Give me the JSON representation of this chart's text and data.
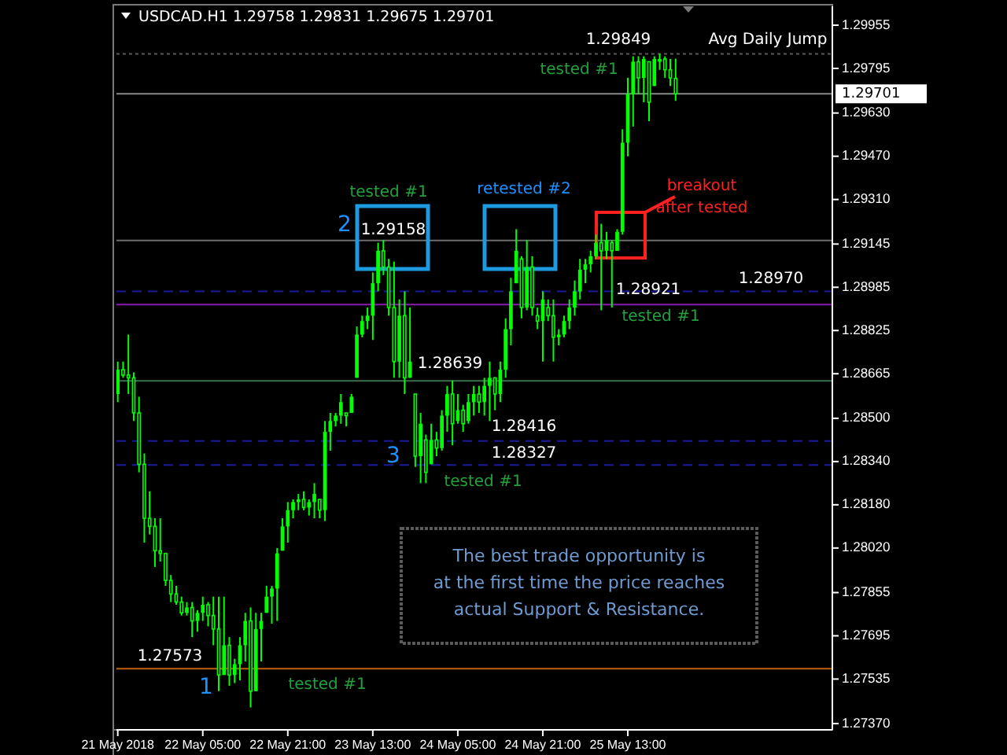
{
  "chart_data": {
    "type": "candlestick",
    "title": "USDCAD.H1  1.29758 1.29831 1.29675 1.29701",
    "color": "#00ff00",
    "x": [
      "2018-05-21T13:00",
      "2018-05-21T14:00",
      "2018-05-21T15:00",
      "2018-05-21T16:00",
      "2018-05-21T17:00",
      "2018-05-21T18:00",
      "2018-05-21T19:00",
      "2018-05-21T20:00",
      "2018-05-21T21:00",
      "2018-05-21T22:00",
      "2018-05-21T23:00",
      "2018-05-22T00:00",
      "2018-05-22T01:00",
      "2018-05-22T02:00",
      "2018-05-22T03:00",
      "2018-05-22T04:00",
      "2018-05-22T05:00",
      "2018-05-22T06:00",
      "2018-05-22T07:00",
      "2018-05-22T08:00",
      "2018-05-22T09:00",
      "2018-05-22T10:00",
      "2018-05-22T11:00",
      "2018-05-22T12:00",
      "2018-05-22T13:00",
      "2018-05-22T14:00",
      "2018-05-22T15:00",
      "2018-05-22T16:00",
      "2018-05-22T17:00",
      "2018-05-22T18:00",
      "2018-05-22T19:00",
      "2018-05-22T20:00",
      "2018-05-22T21:00",
      "2018-05-22T22:00",
      "2018-05-22T23:00",
      "2018-05-23T00:00",
      "2018-05-23T01:00",
      "2018-05-23T02:00",
      "2018-05-23T03:00",
      "2018-05-23T04:00",
      "2018-05-23T05:00",
      "2018-05-23T06:00",
      "2018-05-23T07:00",
      "2018-05-23T08:00",
      "2018-05-23T09:00",
      "2018-05-23T10:00",
      "2018-05-23T11:00",
      "2018-05-23T12:00",
      "2018-05-23T13:00",
      "2018-05-23T14:00",
      "2018-05-23T15:00",
      "2018-05-23T16:00",
      "2018-05-23T17:00",
      "2018-05-23T18:00",
      "2018-05-23T19:00",
      "2018-05-23T20:00",
      "2018-05-23T21:00",
      "2018-05-23T22:00",
      "2018-05-23T23:00",
      "2018-05-24T00:00",
      "2018-05-24T01:00",
      "2018-05-24T02:00",
      "2018-05-24T03:00",
      "2018-05-24T04:00",
      "2018-05-24T05:00",
      "2018-05-24T06:00",
      "2018-05-24T07:00",
      "2018-05-24T08:00",
      "2018-05-24T09:00",
      "2018-05-24T10:00",
      "2018-05-24T11:00",
      "2018-05-24T12:00",
      "2018-05-24T13:00",
      "2018-05-24T14:00",
      "2018-05-24T15:00",
      "2018-05-24T16:00",
      "2018-05-24T17:00",
      "2018-05-24T18:00",
      "2018-05-24T19:00",
      "2018-05-24T20:00",
      "2018-05-24T21:00",
      "2018-05-24T22:00",
      "2018-05-24T23:00",
      "2018-05-25T00:00",
      "2018-05-25T01:00",
      "2018-05-25T02:00",
      "2018-05-25T03:00",
      "2018-05-25T04:00",
      "2018-05-25T05:00",
      "2018-05-25T06:00",
      "2018-05-25T07:00",
      "2018-05-25T08:00",
      "2018-05-25T09:00",
      "2018-05-25T10:00",
      "2018-05-25T11:00",
      "2018-05-25T12:00",
      "2018-05-25T13:00",
      "2018-05-25T14:00",
      "2018-05-25T15:00",
      "2018-05-25T16:00",
      "2018-05-25T17:00",
      "2018-05-25T18:00",
      "2018-05-25T19:00",
      "2018-05-25T20:00",
      "2018-05-25T21:00",
      "2018-05-25T22:00"
    ],
    "ohlc": [
      [
        1.2859,
        1.2871,
        1.2856,
        1.2868
      ],
      [
        1.2868,
        1.2871,
        1.2865,
        1.2866
      ],
      [
        1.2866,
        1.2881,
        1.2859,
        1.2865
      ],
      [
        1.2865,
        1.2867,
        1.2849,
        1.2852
      ],
      [
        1.2852,
        1.2858,
        1.283,
        1.2833
      ],
      [
        1.2833,
        1.2837,
        1.2804,
        1.2813
      ],
      [
        1.2813,
        1.2823,
        1.2807,
        1.281
      ],
      [
        1.281,
        1.2813,
        1.2795,
        1.2801
      ],
      [
        1.2801,
        1.2813,
        1.2797,
        1.28
      ],
      [
        1.28,
        1.28,
        1.2788,
        1.279
      ],
      [
        1.279,
        1.2792,
        1.2782,
        1.2785
      ],
      [
        1.2785,
        1.2788,
        1.2781,
        1.2782
      ],
      [
        1.2782,
        1.2784,
        1.2777,
        1.2778
      ],
      [
        1.2778,
        1.2782,
        1.2777,
        1.278
      ],
      [
        1.278,
        1.2782,
        1.2769,
        1.2775
      ],
      [
        1.2775,
        1.2779,
        1.2771,
        1.2778
      ],
      [
        1.2778,
        1.2784,
        1.2775,
        1.2781
      ],
      [
        1.2781,
        1.2782,
        1.2773,
        1.2777
      ],
      [
        1.2777,
        1.2784,
        1.2766,
        1.2772
      ],
      [
        1.2772,
        1.2784,
        1.2749,
        1.2755
      ],
      [
        1.2755,
        1.2784,
        1.2755,
        1.2766
      ],
      [
        1.2766,
        1.2769,
        1.2751,
        1.2755
      ],
      [
        1.2755,
        1.2761,
        1.2752,
        1.2759
      ],
      [
        1.2759,
        1.2769,
        1.2753,
        1.2766
      ],
      [
        1.2766,
        1.2778,
        1.276,
        1.2775
      ],
      [
        1.2775,
        1.278,
        1.2743,
        1.2749
      ],
      [
        1.2749,
        1.2778,
        1.2749,
        1.2772
      ],
      [
        1.2772,
        1.2778,
        1.276,
        1.2775
      ],
      [
        1.2778,
        1.2788,
        1.2778,
        1.2784
      ],
      [
        1.2784,
        1.2788,
        1.2774,
        1.2787
      ],
      [
        1.2787,
        1.2802,
        1.2775,
        1.28
      ],
      [
        1.2801,
        1.2813,
        1.2801,
        1.281
      ],
      [
        1.281,
        1.2819,
        1.2804,
        1.2816
      ],
      [
        1.2816,
        1.282,
        1.2813,
        1.2819
      ],
      [
        1.2819,
        1.2822,
        1.2816,
        1.282
      ],
      [
        1.282,
        1.2823,
        1.2816,
        1.2817
      ],
      [
        1.2817,
        1.282,
        1.2814,
        1.2819
      ],
      [
        1.2819,
        1.2826,
        1.2813,
        1.2822
      ],
      [
        1.282,
        1.282,
        1.2813,
        1.2816
      ],
      [
        1.2816,
        1.2849,
        1.2812,
        1.2845
      ],
      [
        1.2845,
        1.2852,
        1.2838,
        1.2849
      ],
      [
        1.2849,
        1.2852,
        1.2847,
        1.2851
      ],
      [
        1.2851,
        1.2859,
        1.2848,
        1.2856
      ],
      [
        1.2852,
        1.2852,
        1.2847,
        1.2851
      ],
      [
        1.2852,
        1.2859,
        1.2852,
        1.2858
      ],
      [
        1.2865,
        1.2884,
        1.2865,
        1.2881
      ],
      [
        1.2881,
        1.2888,
        1.288,
        1.2886
      ],
      [
        1.2886,
        1.2891,
        1.2883,
        1.2888
      ],
      [
        1.2888,
        1.2904,
        1.2879,
        1.29
      ],
      [
        1.29,
        1.2915,
        1.2897,
        1.2912
      ],
      [
        1.2912,
        1.2916,
        1.2903,
        1.2906
      ],
      [
        1.2906,
        1.2909,
        1.2888,
        1.2891
      ],
      [
        1.2891,
        1.2908,
        1.2865,
        1.2871
      ],
      [
        1.2871,
        1.2894,
        1.2865,
        1.2888
      ],
      [
        1.2888,
        1.2897,
        1.2859,
        1.2865
      ],
      [
        1.2865,
        1.2891,
        1.2865,
        1.2871
      ],
      [
        1.2859,
        1.2859,
        1.2832,
        1.2836
      ],
      [
        1.2836,
        1.2852,
        1.2826,
        1.2848
      ],
      [
        1.2842,
        1.2844,
        1.2826,
        1.283
      ],
      [
        1.2833,
        1.2848,
        1.2833,
        1.2842
      ],
      [
        1.2842,
        1.2845,
        1.2836,
        1.2839
      ],
      [
        1.2839,
        1.2853,
        1.2838,
        1.2851
      ],
      [
        1.2851,
        1.2862,
        1.2845,
        1.2859
      ],
      [
        1.2859,
        1.2864,
        1.284,
        1.2848
      ],
      [
        1.2849,
        1.2859,
        1.2848,
        1.2853
      ],
      [
        1.2853,
        1.2855,
        1.2845,
        1.2848
      ],
      [
        1.2849,
        1.2859,
        1.2848,
        1.2856
      ],
      [
        1.2856,
        1.2862,
        1.2851,
        1.2859
      ],
      [
        1.2859,
        1.2862,
        1.2852,
        1.2856
      ],
      [
        1.2856,
        1.2865,
        1.2851,
        1.2862
      ],
      [
        1.2862,
        1.2871,
        1.2849,
        1.2865
      ],
      [
        1.2865,
        1.2865,
        1.2853,
        1.2859
      ],
      [
        1.2859,
        1.2871,
        1.2856,
        1.2868
      ],
      [
        1.2868,
        1.2887,
        1.2865,
        1.2883
      ],
      [
        1.2883,
        1.2902,
        1.2877,
        1.2897
      ],
      [
        1.29,
        1.292,
        1.29,
        1.2912
      ],
      [
        1.2909,
        1.291,
        1.2887,
        1.2891
      ],
      [
        1.2891,
        1.2916,
        1.289,
        1.2906
      ],
      [
        1.2906,
        1.291,
        1.2888,
        1.2891
      ],
      [
        1.2888,
        1.2891,
        1.2883,
        1.2886
      ],
      [
        1.2886,
        1.2897,
        1.2871,
        1.2894
      ],
      [
        1.2891,
        1.2894,
        1.2886,
        1.2888
      ],
      [
        1.2888,
        1.2894,
        1.2871,
        1.288
      ],
      [
        1.288,
        1.2883,
        1.2877,
        1.2881
      ],
      [
        1.2881,
        1.2888,
        1.288,
        1.2886
      ],
      [
        1.2886,
        1.2894,
        1.2883,
        1.2891
      ],
      [
        1.2891,
        1.2901,
        1.2888,
        1.2897
      ],
      [
        1.2897,
        1.2909,
        1.2894,
        1.2905
      ],
      [
        1.2905,
        1.2909,
        1.29,
        1.2907
      ],
      [
        1.2907,
        1.2912,
        1.2904,
        1.291
      ],
      [
        1.291,
        1.2918,
        1.2909,
        1.2915
      ],
      [
        1.2915,
        1.2922,
        1.289,
        1.2912
      ],
      [
        1.2912,
        1.2919,
        1.2909,
        1.2916
      ],
      [
        1.2915,
        1.2916,
        1.2891,
        1.2912
      ],
      [
        1.2912,
        1.292,
        1.2912,
        1.2919
      ],
      [
        1.2919,
        1.2957,
        1.2918,
        1.2952
      ],
      [
        1.2952,
        1.2976,
        1.2947,
        1.297
      ],
      [
        1.297,
        1.2984,
        1.2958,
        1.2982
      ],
      [
        1.2982,
        1.2984,
        1.297,
        1.2976
      ],
      [
        1.2976,
        1.2984,
        1.2967,
        1.2983
      ],
      [
        1.2982,
        1.2982,
        1.296,
        1.2967
      ],
      [
        1.2973,
        1.2984,
        1.2973,
        1.2983
      ],
      [
        1.2982,
        1.29849,
        1.2979,
        1.2983
      ],
      [
        1.2983,
        1.2984,
        1.2976,
        1.2979
      ],
      [
        1.2979,
        1.2983,
        1.2973,
        1.2976
      ],
      [
        1.29758,
        1.29831,
        1.29675,
        1.29701
      ]
    ],
    "xlim": [
      "2018-05-21T12:45",
      "2018-05-27T03:30"
    ],
    "xticks": [
      {
        "value": "2018-05-21T13:00",
        "label": "21 May 2018"
      },
      {
        "value": "2018-05-22T05:00",
        "label": "22 May 05:00"
      },
      {
        "value": "2018-05-22T21:00",
        "label": "22 May 21:00"
      },
      {
        "value": "2018-05-23T13:00",
        "label": "23 May 13:00"
      },
      {
        "value": "2018-05-24T05:00",
        "label": "24 May 05:00"
      },
      {
        "value": "2018-05-24T21:00",
        "label": "24 May 21:00"
      },
      {
        "value": "2018-05-25T13:00",
        "label": "25 May 13:00"
      }
    ],
    "ylim": [
      1.27347,
      1.30025
    ],
    "yticks": [
      1.29955,
      1.29795,
      {
        "value": 1.2963,
        "label": "1.29630"
      },
      {
        "value": 1.2947,
        "label": "1.29470"
      },
      {
        "value": 1.2931,
        "label": "1.29310"
      },
      1.29145,
      1.28985,
      1.28825,
      1.28665,
      {
        "value": 1.285,
        "label": "1.28500"
      },
      {
        "value": 1.2834,
        "label": "1.28340"
      },
      {
        "value": 1.2818,
        "label": "1.28180"
      },
      {
        "value": 1.2802,
        "label": "1.28020"
      },
      1.27855,
      1.27695,
      1.27535,
      {
        "value": 1.2737,
        "label": "1.27370"
      }
    ],
    "ref_lines": [
      {
        "axis": "y",
        "value": 1.29701,
        "label": "1.29701",
        "color": "#8a8a8a",
        "line_style": "solid"
      },
      {
        "axis": "y",
        "value": 1.29849,
        "color": "#5a5a5a",
        "line_style": "dotted"
      },
      {
        "axis": "y",
        "value": 1.29158,
        "color": "#6e6e6e",
        "line_style": "solid"
      },
      {
        "axis": "y",
        "value": 1.2897,
        "color": "#1a1a9a",
        "line_style": "dashed"
      },
      {
        "axis": "y",
        "value": 1.28921,
        "color": "#8a1ab0",
        "line_style": "solid"
      },
      {
        "axis": "y",
        "value": 1.28639,
        "color": "#3f7050",
        "line_style": "solid"
      },
      {
        "axis": "y",
        "value": 1.28416,
        "color": "#1a1aa0",
        "line_style": "dashed"
      },
      {
        "axis": "y",
        "value": 1.28327,
        "color": "#1a1aa0",
        "line_style": "dashed"
      },
      {
        "axis": "y",
        "value": 1.27573,
        "color": "#c0600a",
        "line_style": "solid"
      }
    ],
    "annotations": [
      "tested #1",
      "2",
      "1.29158",
      "retested #2",
      "breakout\nafter tested",
      "1.29849",
      "Avg Daily Jump",
      "tested #1",
      "1.28921",
      "tested #1",
      "1.28970",
      "1.28639",
      "1.28416",
      "1.28327",
      "3",
      "tested #1",
      "1.27573",
      "1",
      "tested #1",
      "The best trade opportunity is",
      "at the first time the price reaches",
      "actual Support & Resistance."
    ]
  }
}
